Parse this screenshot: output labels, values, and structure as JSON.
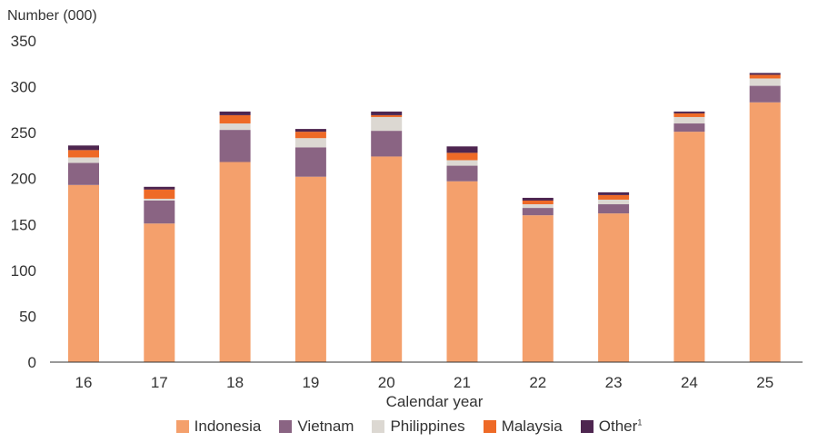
{
  "chart_data": {
    "type": "bar",
    "stacked": true,
    "ylabel": "Number (000)",
    "xlabel": "Calendar year",
    "ylim": [
      0,
      350
    ],
    "yticks": [
      0,
      50,
      100,
      150,
      200,
      250,
      300,
      350
    ],
    "grid": false,
    "legend_position": "bottom",
    "categories": [
      "16",
      "17",
      "18",
      "19",
      "20",
      "21",
      "22",
      "23",
      "24",
      "25"
    ],
    "series": [
      {
        "name": "Indonesia",
        "color": "#f4a06c",
        "values": [
          193,
          151,
          218,
          202,
          224,
          197,
          160,
          162,
          251,
          283
        ]
      },
      {
        "name": "Vietnam",
        "color": "#8a6483",
        "values": [
          24,
          25,
          35,
          32,
          28,
          17,
          8,
          10,
          9,
          18
        ]
      },
      {
        "name": "Philippines",
        "color": "#dcd8d2",
        "values": [
          6,
          2,
          7,
          10,
          15,
          6,
          4,
          5,
          7,
          8
        ]
      },
      {
        "name": "Malaysia",
        "color": "#ee6a27",
        "values": [
          8,
          10,
          9,
          7,
          2,
          8,
          4,
          5,
          4,
          4
        ]
      },
      {
        "name": "Other",
        "name_sup": "1",
        "color": "#4e2650",
        "values": [
          5,
          3,
          4,
          3,
          4,
          7,
          3,
          3,
          2,
          2
        ]
      }
    ]
  }
}
